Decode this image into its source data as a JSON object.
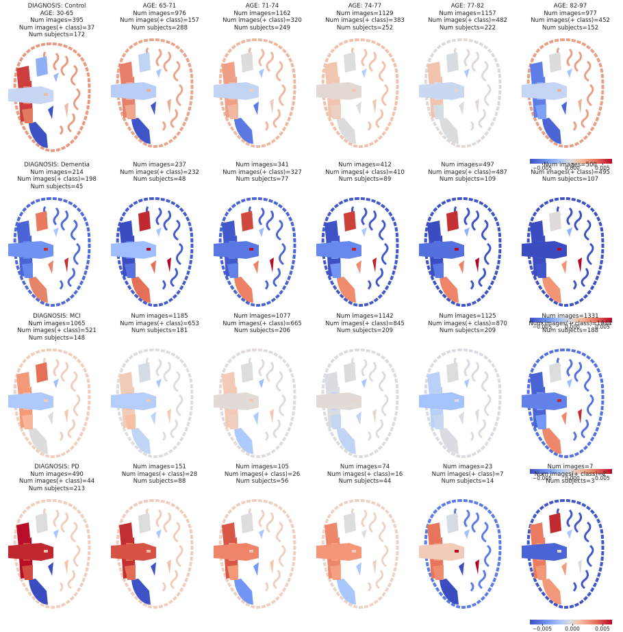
{
  "colormap": {
    "name": "coolwarm",
    "stops": [
      "#3b4cc0",
      "#6f92f3",
      "#aac7fd",
      "#dddcdc",
      "#f7b89c",
      "#e7745b",
      "#b40426"
    ],
    "ticks": [
      "−0.005",
      "0.000",
      "0.005"
    ]
  },
  "rows": [
    {
      "diagnosis": "DIAGNOSIS: Control",
      "panels": [
        {
          "lines": [
            "DIAGNOSIS: Control",
            "AGE: 30-65",
            "Num images=395",
            "Num images(+ class)=37",
            "Num subjects=172"
          ],
          "fill": {
            "core": "#c7d6f3",
            "left": "#cd3d3d",
            "lc": "#e27a60",
            "sub": "#9db6f7",
            "top": "#8fb0f6",
            "lowL": "#3b52c5",
            "lowR": "#e8bba6",
            "ribbon": "#e89a80"
          }
        },
        {
          "lines": [
            "AGE: 65-71",
            "Num images=976",
            "Num images(+ class)=157",
            "Num subjects=288"
          ],
          "fill": {
            "core": "#b8cdf8",
            "left": "#e6806a",
            "lc": "#f0a68b",
            "sub": "#aac7fd",
            "top": "#c2d4f4",
            "lowL": "#3e54c7",
            "lowR": "#e7ad93",
            "ribbon": "#e9a58c"
          }
        },
        {
          "lines": [
            "AGE: 71-74",
            "Num images=1162",
            "Num images(+ class)=320",
            "Num subjects=249"
          ],
          "fill": {
            "core": "#c2d4f4",
            "left": "#ef9f85",
            "lc": "#f2b89f",
            "sub": "#aac7fd",
            "top": "#dfdbd9",
            "lowL": "#5b79e2",
            "lowR": "#e9cfc2",
            "ribbon": "#edb8a1"
          }
        },
        {
          "lines": [
            "AGE: 74-77",
            "Num images=1129",
            "Num images(+ class)=383",
            "Num subjects=252"
          ],
          "fill": {
            "core": "#e3d9d3",
            "left": "#f2c5b1",
            "lc": "#eed0c0",
            "sub": "#b7cff9",
            "top": "#dcdddd",
            "lowL": "#dddcdc",
            "lowR": "#f0c9b6",
            "ribbon": "#f0c1ac"
          }
        },
        {
          "lines": [
            "AGE: 77-82",
            "Num images=1157",
            "Num images(+ class)=482",
            "Num subjects=222"
          ],
          "fill": {
            "core": "#c9d7f0",
            "left": "#f2c4ae",
            "lc": "#d6dce4",
            "sub": "#aac7fd",
            "top": "#d7dce3",
            "lowL": "#dbdcdd",
            "lowR": "#e0d7d2",
            "ribbon": "#dfd8d4"
          }
        },
        {
          "lines": [
            "AGE: 82-97",
            "Num images=977",
            "Num images(+ class)=452",
            "Num subjects=152"
          ],
          "fill": {
            "core": "#c5d5f6",
            "left": "#5d7ce6",
            "lc": "#7da0f9",
            "sub": "#aac7fd",
            "top": "#dddcdc",
            "lowL": "#4b64d5",
            "lowR": "#e9b39b",
            "ribbon": "#e79f85"
          },
          "colorbar": true
        }
      ]
    },
    {
      "diagnosis": "DIAGNOSIS: Dementia",
      "panels": [
        {
          "lines": [
            "DIAGNOSIS: Dementia",
            "Num images=214",
            "Num images(+ class)=198",
            "Num subjects=45"
          ],
          "fill": {
            "core": "#6f92f3",
            "left": "#4b64d5",
            "lc": "#6687ed",
            "sub": "#aac7fd",
            "top": "#e97a5f",
            "lowL": "#e68468",
            "lowR": "#c32e31",
            "ribbon": "#4e68d8"
          }
        },
        {
          "lines": [
            "Num images=237",
            "Num images(+ class)=232",
            "Num subjects=48"
          ],
          "fill": {
            "core": "#9ebeff",
            "left": "#3b4cc0",
            "lc": "#5673e0",
            "sub": "#aac7fd",
            "top": "#c0282f",
            "lowL": "#e57058",
            "lowR": "#b40426",
            "ribbon": "#445acc"
          }
        },
        {
          "lines": [
            "Num images=341",
            "Num images(+ class)=327",
            "Num subjects=77"
          ],
          "fill": {
            "core": "#5977e3",
            "left": "#4358cb",
            "lc": "#6282ea",
            "sub": "#9ebeff",
            "top": "#d0473d",
            "lowL": "#ec8165",
            "lowR": "#b70d28",
            "ribbon": "#4a63d3"
          }
        },
        {
          "lines": [
            "Num images=412",
            "Num images(+ class)=410",
            "Num subjects=89"
          ],
          "fill": {
            "core": "#6788ee",
            "left": "#3e51c5",
            "lc": "#7396f5",
            "sub": "#aac7fd",
            "top": "#cc403a",
            "lowL": "#f08b6e",
            "lowR": "#be242e",
            "ribbon": "#4257c9"
          }
        },
        {
          "lines": [
            "Num images=497",
            "Num images(+ class)=487",
            "Num subjects=109"
          ],
          "fill": {
            "core": "#5470de",
            "left": "#3b4cc0",
            "lc": "#5a78e4",
            "sub": "#8caffe",
            "top": "#c43032",
            "lowL": "#ee8468",
            "lowR": "#b40426",
            "ribbon": "#3e51c5"
          }
        },
        {
          "lines": [
            "Num images=500",
            "Num images(+ class)=495",
            "Num subjects=107"
          ],
          "fill": {
            "core": "#3b4cc0",
            "left": "#3b4cc0",
            "lc": "#4055c8",
            "sub": "#8caffe",
            "top": "#e0dbd8",
            "lowL": "#f39475",
            "lowR": "#b40426",
            "ribbon": "#3d50c3"
          },
          "colorbar": true
        }
      ]
    },
    {
      "diagnosis": "DIAGNOSIS: MCI",
      "panels": [
        {
          "lines": [
            "DIAGNOSIS: MCI",
            "Num images=1065",
            "Num images(+ class)=521",
            "Num subjects=148"
          ],
          "fill": {
            "core": "#aec9fc",
            "left": "#f4987a",
            "lc": "#f7b599",
            "sub": "#9ebeff",
            "top": "#e57058",
            "lowL": "#dddcdc",
            "lowR": "#f2cbb7",
            "ribbon": "#efcebd"
          }
        },
        {
          "lines": [
            "Num images=1185",
            "Num images(+ class)=653",
            "Num subjects=181"
          ],
          "fill": {
            "core": "#b5cdfa",
            "left": "#f1ccb8",
            "lc": "#f6bfa6",
            "sub": "#aac7fd",
            "top": "#d6dce4",
            "lowL": "#c0d4f5",
            "lowR": "#f2c9b4",
            "ribbon": "#dcdddd"
          }
        },
        {
          "lines": [
            "Num images=1077",
            "Num images(+ class)=665",
            "Num subjects=206"
          ],
          "fill": {
            "core": "#e1dad6",
            "left": "#f2cab5",
            "lc": "#efcfbf",
            "sub": "#9ebeff",
            "top": "#dcdddd",
            "lowL": "#aec9fc",
            "lowR": "#f2cab5",
            "ribbon": "#e0dbd8"
          }
        },
        {
          "lines": [
            "Num images=1142",
            "Num images(+ class)=845",
            "Num subjects=209"
          ],
          "fill": {
            "core": "#e1dad6",
            "left": "#d9dce1",
            "lc": "#c5d6f2",
            "sub": "#aac7fd",
            "top": "#dbdcde",
            "lowL": "#c1d4f4",
            "lowR": "#e9d5cb",
            "ribbon": "#dbdcde"
          }
        },
        {
          "lines": [
            "Num images=1125",
            "Num images(+ class)=870",
            "Num subjects=209"
          ],
          "fill": {
            "core": "#a3c2fe",
            "left": "#b9d0f9",
            "lc": "#c7d7f0",
            "sub": "#aac7fd",
            "top": "#dcdddd",
            "lowL": "#d9dce1",
            "lowR": "#dadce0",
            "ribbon": "#d8dce2"
          }
        },
        {
          "lines": [
            "Num images=1331",
            "Num images(+ class)=1044",
            "Num subjects=188"
          ],
          "fill": {
            "core": "#6282ea",
            "left": "#4a63d3",
            "lc": "#7597f6",
            "sub": "#9ebeff",
            "top": "#dcdddd",
            "lowL": "#ef886b",
            "lowR": "#c12b30",
            "ribbon": "#5470de"
          },
          "colorbar": true
        }
      ]
    },
    {
      "diagnosis": "DIAGNOSIS: PD",
      "panels": [
        {
          "lines": [
            "DIAGNOSIS: PD",
            "Num images=490",
            "Num images(+ class)=44",
            "Num subjects=213"
          ],
          "fill": {
            "core": "#c0282f",
            "left": "#b70d28",
            "lc": "#d24b40",
            "sub": "#aac7fd",
            "top": "#dcdddd",
            "lowL": "#3b4cc0",
            "lowR": "#f4c5ad",
            "ribbon": "#efcebd"
          }
        },
        {
          "lines": [
            "Num images=151",
            "Num images(+ class)=28",
            "Num subjects=88"
          ],
          "fill": {
            "core": "#d65244",
            "left": "#c32e31",
            "lc": "#e36c55",
            "sub": "#aac7fd",
            "top": "#dcdddd",
            "lowL": "#3e51c5",
            "lowR": "#f5c0a7",
            "ribbon": "#f0cdbb"
          }
        },
        {
          "lines": [
            "Num images=105",
            "Num images(+ class)=26",
            "Num subjects=56"
          ],
          "fill": {
            "core": "#ee8468",
            "left": "#d85646",
            "lc": "#f4987a",
            "sub": "#aac7fd",
            "top": "#dcdddd",
            "lowL": "#7396f5",
            "lowR": "#f3c8b2",
            "ribbon": "#efcfbf"
          }
        },
        {
          "lines": [
            "Num images=74",
            "Num images(+ class)=16",
            "Num subjects=44"
          ],
          "fill": {
            "core": "#f39778",
            "left": "#ee8669",
            "lc": "#f5a081",
            "sub": "#dddcdc",
            "top": "#dcdddd",
            "lowL": "#aac7fd",
            "lowR": "#eed0c0",
            "ribbon": "#ecd3c5"
          }
        },
        {
          "lines": [
            "Num images=23",
            "Num images(+ class)=7",
            "Num subjects=14"
          ],
          "fill": {
            "core": "#f1ccb8",
            "left": "#e7745b",
            "lc": "#f18d6f",
            "sub": "#9ebeff",
            "top": "#d6dce4",
            "lowL": "#3b4cc0",
            "lowR": "#b40426",
            "ribbon": "#5b7ae5"
          }
        },
        {
          "lines": [
            "Num images=7",
            "Num images(+ class)=2",
            "Num subjects=3"
          ],
          "fill": {
            "core": "#4b64d5",
            "left": "#ea7b60",
            "lc": "#f39778",
            "sub": "#aac7fd",
            "top": "#c12b30",
            "lowL": "#f4987a",
            "lowR": "#dedcdb",
            "ribbon": "#4055c8"
          },
          "colorbar": true
        }
      ]
    }
  ]
}
